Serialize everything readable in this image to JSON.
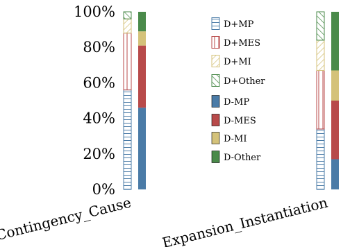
{
  "chart_data": {
    "type": "bar",
    "stacked": true,
    "title": "",
    "xlabel": "",
    "ylabel": "",
    "ylim": [
      0,
      100
    ],
    "y_ticks": [
      "0%",
      "20%",
      "40%",
      "60%",
      "80%",
      "100%"
    ],
    "categories": [
      "Contingency_Cause",
      "Expansion_Instantiation"
    ],
    "groups": [
      "D+",
      "D-"
    ],
    "series": [
      {
        "name": "D+MP",
        "group": "D+",
        "style": "hatch-horizontal",
        "color": "#4a7ba7",
        "values": [
          56,
          34
        ]
      },
      {
        "name": "D+MES",
        "group": "D+",
        "style": "hatch-vertical",
        "color": "#b84a4a",
        "values": [
          32,
          33
        ]
      },
      {
        "name": "D+MI",
        "group": "D+",
        "style": "hatch-diagonal",
        "color": "#d4c27a",
        "values": [
          8,
          17
        ]
      },
      {
        "name": "D+Other",
        "group": "D+",
        "style": "hatch-backdiagonal",
        "color": "#4a8a4a",
        "values": [
          4,
          16
        ]
      },
      {
        "name": "D-MP",
        "group": "D-",
        "style": "solid",
        "color": "#4a7ba7",
        "values": [
          46,
          17
        ]
      },
      {
        "name": "D-MES",
        "group": "D-",
        "style": "solid",
        "color": "#b84a4a",
        "values": [
          35,
          33
        ]
      },
      {
        "name": "D-MI",
        "group": "D-",
        "style": "solid",
        "color": "#d4c27a",
        "values": [
          8,
          17
        ]
      },
      {
        "name": "D-Other",
        "group": "D-",
        "style": "solid",
        "color": "#4a8a4a",
        "values": [
          11,
          33
        ]
      }
    ],
    "legend_position": "center"
  }
}
